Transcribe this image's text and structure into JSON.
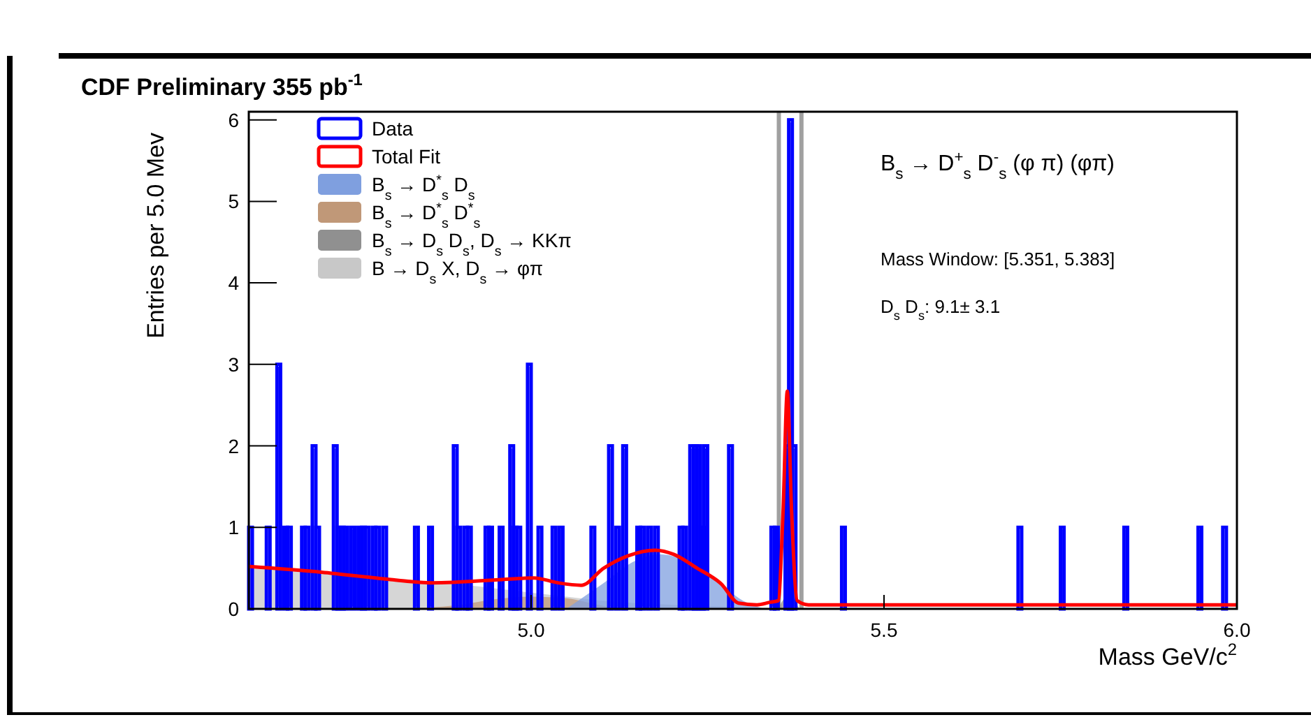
{
  "chart_data": {
    "type": "histogram",
    "title": "CDF Preliminary 355 pb$^{-1}$",
    "xlabel": "Mass GeV/c$^{2}$",
    "ylabel": "Entries per 5.0 Mev",
    "annotations": [
      "B$_{s}$ → D$^{+}$$_{s}$ D$^{-}$$_{s}$ (φ π) (φπ)",
      "Mass Window: [5.351, 5.383]",
      "D$_{s}$ D$_{s}$:  9.1±  3.1"
    ],
    "xlim": [
      4.6,
      6.0
    ],
    "xticks": [
      {
        "value": 5,
        "label": "5.0"
      },
      {
        "value": 5.5,
        "label": "5.5"
      },
      {
        "value": 6,
        "label": "6.0"
      }
    ],
    "ylim": [
      0,
      6.1
    ],
    "yticks": [
      0,
      1,
      2,
      3,
      4,
      5,
      6
    ],
    "legend": "top left",
    "ref_lines": [
      {
        "axis": "x",
        "value": 5.351,
        "color": "#a0a0a0"
      },
      {
        "axis": "x",
        "value": 5.383,
        "color": "#a0a0a0"
      }
    ],
    "series": [
      {
        "name": "Data",
        "color": "#0000ff",
        "bins": [
          4.6,
          4.605,
          4.625,
          4.63,
          4.64,
          4.645,
          4.65,
          4.655,
          4.66,
          4.675,
          4.68,
          4.685,
          4.69,
          4.695,
          4.7,
          4.72,
          4.725,
          4.73,
          4.735,
          4.74,
          4.745,
          4.75,
          4.755,
          4.76,
          4.765,
          4.77,
          4.775,
          4.78,
          4.785,
          4.79,
          4.795,
          4.835,
          4.84,
          4.855,
          4.86,
          4.89,
          4.895,
          4.9,
          4.905,
          4.91,
          4.915,
          4.935,
          4.94,
          4.945,
          4.955,
          4.96,
          4.97,
          4.975,
          4.98,
          4.985,
          4.995,
          5.0,
          5.01,
          5.015,
          5.03,
          5.035,
          5.04,
          5.045,
          5.085,
          5.09,
          5.11,
          5.115,
          5.12,
          5.125,
          5.13,
          5.135,
          5.15,
          5.155,
          5.16,
          5.165,
          5.17,
          5.175,
          5.18,
          5.21,
          5.215,
          5.22,
          5.225,
          5.23,
          5.235,
          5.24,
          5.245,
          5.25,
          5.28,
          5.285,
          5.34,
          5.345,
          5.35,
          5.36,
          5.365,
          5.37,
          5.375,
          5.44,
          5.445,
          5.69,
          5.695,
          5.75,
          5.755,
          5.84,
          5.845,
          5.945,
          5.95,
          5.98,
          5.985
        ],
        "values": [
          1,
          0,
          1,
          0,
          3,
          0,
          1,
          1,
          0,
          1,
          1,
          0,
          2,
          1,
          0,
          2,
          1,
          1,
          1,
          0,
          1,
          0,
          1,
          1,
          1,
          0,
          1,
          1,
          0,
          1,
          0,
          1,
          0,
          1,
          0,
          2,
          1,
          0,
          1,
          1,
          0,
          1,
          1,
          0,
          1,
          0,
          2,
          1,
          1,
          0,
          3,
          0,
          1,
          0,
          1,
          0,
          1,
          0,
          1,
          0,
          2,
          0,
          1,
          0,
          2,
          0,
          1,
          1,
          0,
          1,
          0,
          1,
          0,
          1,
          1,
          0,
          2,
          2,
          2,
          1,
          2,
          0,
          2,
          0,
          1,
          1,
          0,
          2,
          6,
          2,
          0,
          1,
          0,
          1,
          0,
          1,
          0,
          1,
          0,
          1,
          0,
          1
        ]
      },
      {
        "name": "Total Fit",
        "type": "line",
        "color": "#ff0000",
        "x": [
          4.6,
          4.703,
          4.801,
          4.86,
          4.959,
          5.004,
          5.038,
          5.071,
          5.103,
          5.137,
          5.176,
          5.202,
          5.235,
          5.269,
          5.294,
          5.32,
          5.338,
          5.35,
          5.357,
          5.363,
          5.369,
          5.377,
          5.393,
          5.63,
          6.0
        ],
        "values": [
          0.52,
          0.45,
          0.36,
          0.32,
          0.36,
          0.38,
          0.32,
          0.29,
          0.5,
          0.65,
          0.72,
          0.67,
          0.5,
          0.31,
          0.07,
          0.05,
          0.08,
          0.1,
          1.2,
          2.67,
          1.2,
          0.1,
          0.05,
          0.05,
          0.05
        ]
      },
      {
        "name": "B$_{s}$ → D$^{*}$$_{s}$ D$_{s}$",
        "type": "area",
        "color": "#7f9fdf",
        "x": [
          5.05,
          5.1,
          5.15,
          5.18,
          5.2,
          5.25,
          5.3,
          5.33
        ],
        "values": [
          0,
          0.3,
          0.6,
          0.67,
          0.65,
          0.45,
          0.1,
          0
        ]
      },
      {
        "name": "B$_{s}$ → D$^{*}$$_{s}$ D$^{*}$$_{s}$",
        "type": "area",
        "color": "#c09878",
        "x": [
          4.8,
          4.9,
          4.95,
          5.0,
          5.05,
          5.08,
          5.12
        ],
        "values": [
          0,
          0.05,
          0.12,
          0.15,
          0.13,
          0.08,
          0
        ]
      },
      {
        "name": "B$_{s}$ → D$_{s}$ D$_{s}$, D$_{s}$ → KKπ",
        "type": "area",
        "color": "#909090",
        "x": [
          5.35,
          5.36,
          5.365,
          5.37,
          5.38
        ],
        "values": [
          0,
          0.15,
          0.2,
          0.15,
          0
        ]
      },
      {
        "name": "B → D$_{s}$ X, D$_{s}$ → φπ",
        "type": "area",
        "color": "#c8c8c8",
        "x": [
          4.6,
          4.7,
          4.8,
          4.9,
          5.0,
          5.05,
          5.1,
          5.2,
          5.3,
          5.35
        ],
        "values": [
          0.5,
          0.45,
          0.38,
          0.3,
          0.2,
          0.15,
          0.1,
          0.05,
          0.02,
          0
        ]
      }
    ]
  }
}
